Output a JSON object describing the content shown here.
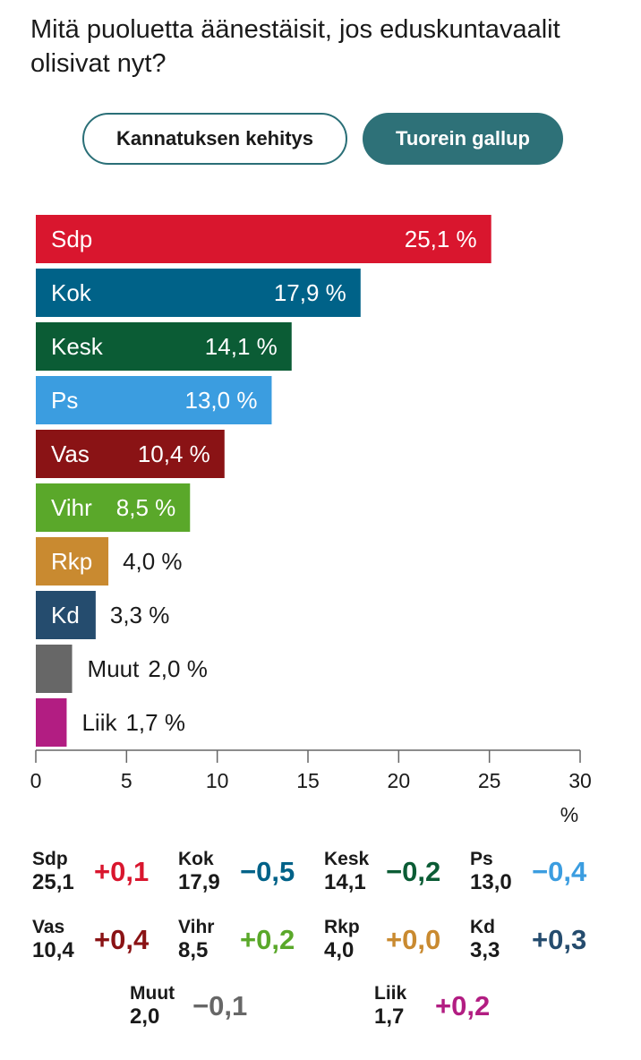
{
  "title": "Mitä puoluetta äänestäisit, jos eduskuntavaalit olisivat nyt?",
  "buttons": {
    "evolution_label": "Kannatuksen kehitys",
    "latest_label": "Tuorein gallup"
  },
  "chart_data": {
    "type": "bar",
    "orientation": "horizontal",
    "categories": [
      "Sdp",
      "Kok",
      "Kesk",
      "Ps",
      "Vas",
      "Vihr",
      "Rkp",
      "Kd",
      "Muut",
      "Liik"
    ],
    "values": [
      25.1,
      17.9,
      14.1,
      13.0,
      10.4,
      8.5,
      4.0,
      3.3,
      2.0,
      1.7
    ],
    "value_labels": [
      "25,1 %",
      "17,9 %",
      "14,1 %",
      "13,0 %",
      "10,4 %",
      "8,5 %",
      "4,0 %",
      "3,3 %",
      "2,0 %",
      "1,7 %"
    ],
    "colors": [
      "#d9162e",
      "#006288",
      "#0b5c35",
      "#3b9de0",
      "#8a1315",
      "#5aa82a",
      "#c98a30",
      "#254c6e",
      "#676767",
      "#b21d82"
    ],
    "xlim": [
      0,
      30
    ],
    "xticks": [
      0,
      5,
      10,
      15,
      20,
      25,
      30
    ],
    "xtick_labels": [
      "0",
      "5",
      "10",
      "15",
      "20",
      "25",
      "30"
    ],
    "xlabel": "%",
    "title": ""
  },
  "changes": [
    {
      "party": "Sdp",
      "value": "25,1",
      "delta": "+0,1",
      "color": "#d9162e"
    },
    {
      "party": "Kok",
      "value": "17,9",
      "delta": "−0,5",
      "color": "#006288"
    },
    {
      "party": "Kesk",
      "value": "14,1",
      "delta": "−0,2",
      "color": "#0b5c35"
    },
    {
      "party": "Ps",
      "value": "13,0",
      "delta": "−0,4",
      "color": "#3b9de0"
    },
    {
      "party": "Vas",
      "value": "10,4",
      "delta": "+0,4",
      "color": "#8a1315"
    },
    {
      "party": "Vihr",
      "value": "8,5",
      "delta": "+0,2",
      "color": "#5aa82a"
    },
    {
      "party": "Rkp",
      "value": "4,0",
      "delta": "+0,0",
      "color": "#c98a30"
    },
    {
      "party": "Kd",
      "value": "3,3",
      "delta": "+0,3",
      "color": "#254c6e"
    },
    {
      "party": "Muut",
      "value": "2,0",
      "delta": "−0,1",
      "color": "#676767"
    },
    {
      "party": "Liik",
      "value": "1,7",
      "delta": "+0,2",
      "color": "#b21d82"
    }
  ]
}
